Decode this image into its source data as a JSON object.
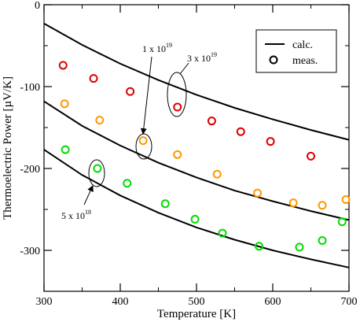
{
  "chart_data": {
    "type": "scatter",
    "title": "",
    "xlabel": "Temperature [K]",
    "ylabel": "Thermoelectric Power [µV/K]",
    "xlim": [
      300,
      700
    ],
    "ylim": [
      -350,
      0
    ],
    "x_ticks": [
      300,
      400,
      500,
      600,
      700
    ],
    "y_ticks": [
      0,
      -100,
      -200,
      -300
    ],
    "x_tick_labels": [
      "300",
      "400",
      "500",
      "600",
      "700"
    ],
    "y_tick_labels": [
      "0",
      "-100",
      "-200",
      "-300"
    ],
    "grid": false,
    "legend": {
      "placement": "top-right",
      "entries": [
        {
          "label": "calc.",
          "marker": "line",
          "color": "#000000"
        },
        {
          "label": "meas.",
          "marker": "circle",
          "color": "#000000"
        }
      ]
    },
    "series": [
      {
        "kind": "calc",
        "color": "#000000",
        "x": [
          300,
          350,
          400,
          450,
          500,
          550,
          600,
          650,
          700
        ],
        "y": [
          -23,
          -49,
          -72,
          -92,
          -110,
          -126,
          -140,
          -153,
          -165
        ]
      },
      {
        "kind": "calc",
        "color": "#000000",
        "x": [
          300,
          350,
          400,
          450,
          500,
          550,
          600,
          650,
          700
        ],
        "y": [
          -118,
          -148,
          -172,
          -193,
          -211,
          -227,
          -240,
          -252,
          -263
        ]
      },
      {
        "kind": "calc",
        "color": "#000000",
        "x": [
          300,
          350,
          400,
          450,
          500,
          550,
          600,
          650,
          700
        ],
        "y": [
          -177,
          -208,
          -233,
          -254,
          -272,
          -287,
          -300,
          -311,
          -321
        ]
      },
      {
        "kind": "meas",
        "color": "#dd0000",
        "x": [
          325,
          365,
          413,
          475,
          520,
          558,
          597,
          650
        ],
        "y": [
          -74,
          -90,
          -106,
          -125,
          -142,
          -155,
          -167,
          -185
        ]
      },
      {
        "kind": "meas",
        "color": "#ff9900",
        "x": [
          327,
          373,
          430,
          475,
          527,
          580,
          627,
          665,
          696
        ],
        "y": [
          -121,
          -141,
          -166,
          -183,
          -207,
          -230,
          -242,
          -245,
          -238
        ]
      },
      {
        "kind": "meas",
        "color": "#00dd00",
        "x": [
          328,
          370,
          409,
          459,
          498,
          534,
          582,
          635,
          665,
          691
        ],
        "y": [
          -177,
          -200,
          -218,
          -243,
          -262,
          -279,
          -295,
          -296,
          -288,
          -265
        ]
      }
    ],
    "annotations": [
      {
        "text": "3 x 10",
        "exp": "19"
      },
      {
        "text": "1 x 10",
        "exp": "19"
      },
      {
        "text": "5 x 10",
        "exp": "18"
      }
    ]
  }
}
